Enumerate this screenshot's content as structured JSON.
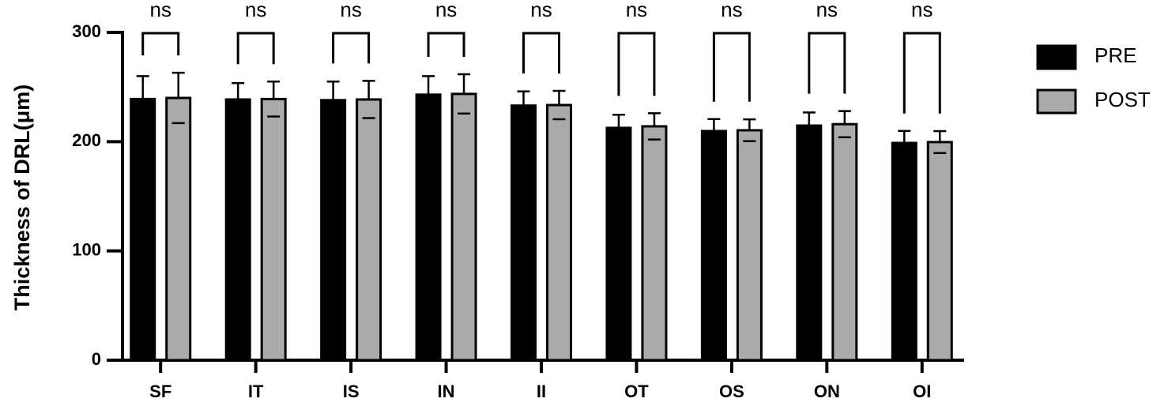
{
  "chart_data": {
    "type": "bar",
    "y_label": "Thickness of DRL(μm)",
    "categories": [
      "SF",
      "IT",
      "IS",
      "IN",
      "II",
      "OT",
      "OS",
      "ON",
      "OI"
    ],
    "series": [
      {
        "name": "PRE",
        "color": "#000000",
        "values": [
          239,
          238.6,
          238,
          243,
          233,
          212.6,
          209.7,
          214.7,
          198.8
        ],
        "errors": [
          21,
          15,
          17,
          17,
          13,
          12,
          11,
          12,
          11
        ]
      },
      {
        "name": "POST",
        "color": "#aaaaaa",
        "values": [
          240,
          239,
          238.6,
          243.7,
          233.5,
          214,
          210.4,
          216,
          199.6
        ],
        "errors": [
          23,
          16,
          17,
          18,
          13,
          12,
          10,
          12,
          10
        ]
      }
    ],
    "annotations": [
      "ns",
      "ns",
      "ns",
      "ns",
      "ns",
      "ns",
      "ns",
      "ns",
      "ns"
    ],
    "ylim": [
      0,
      300
    ],
    "yticks": [
      0,
      100,
      200,
      300
    ],
    "legend": "right"
  }
}
